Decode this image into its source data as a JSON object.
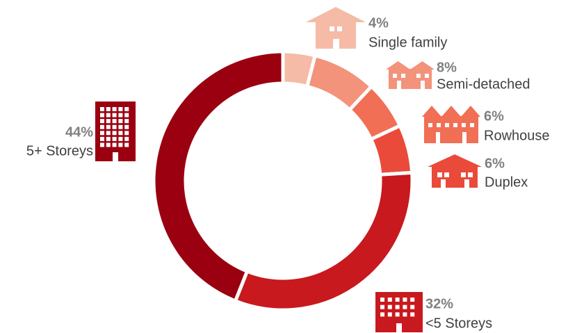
{
  "chart_data": {
    "type": "pie",
    "categories": [
      "Single family",
      "Semi-detached",
      "Rowhouse",
      "Duplex",
      "<5 Storeys",
      "5+ Storeys"
    ],
    "values": [
      4,
      8,
      6,
      6,
      32,
      44
    ],
    "value_labels": [
      "4%",
      "8%",
      "6%",
      "6%",
      "32%",
      "44%"
    ],
    "colors": [
      "#f5bba6",
      "#f3937b",
      "#f06f55",
      "#ea4a3a",
      "#c8191e",
      "#9a000f"
    ],
    "donut": true
  }
}
